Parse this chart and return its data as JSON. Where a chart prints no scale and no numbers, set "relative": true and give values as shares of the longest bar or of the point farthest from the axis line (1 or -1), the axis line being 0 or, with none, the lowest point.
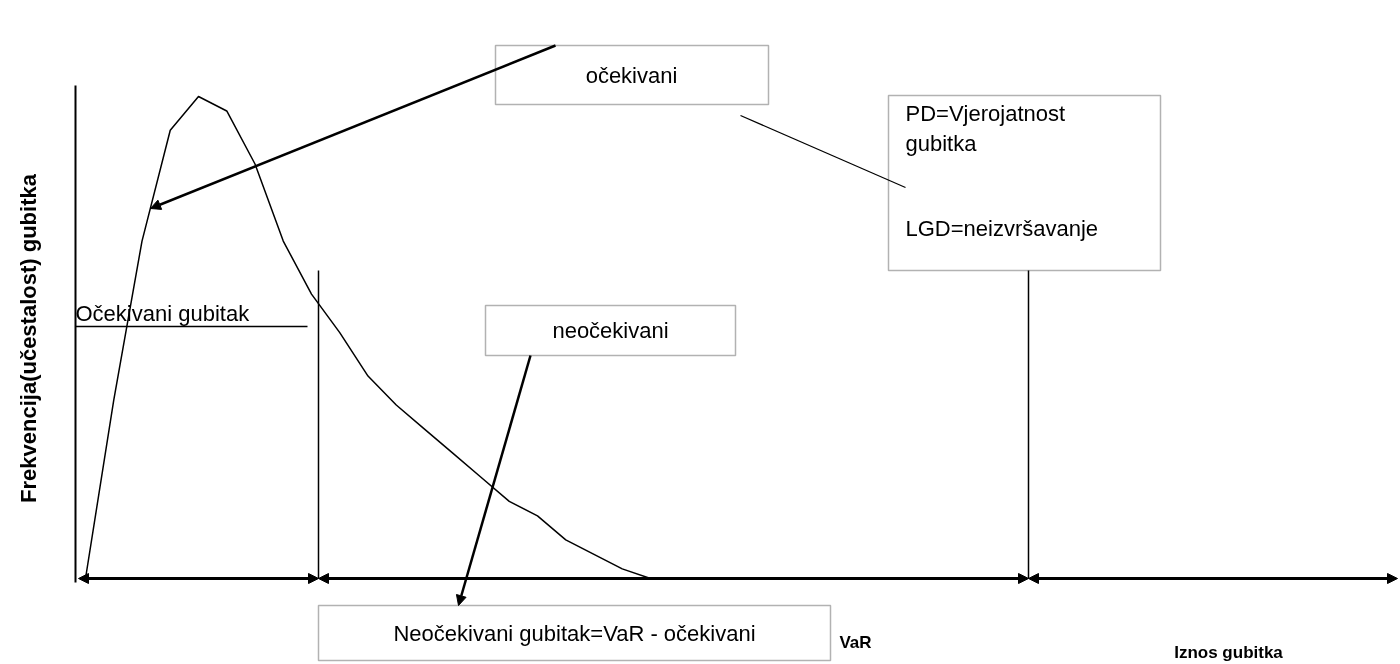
{
  "chart_data": {
    "type": "line",
    "relative": true,
    "ylabel": "Frekvencija(učestalost) gubitka",
    "categories": [
      null,
      null,
      null,
      null,
      null,
      null,
      null,
      null,
      null,
      null,
      null,
      null,
      null,
      null,
      null,
      null,
      null,
      null,
      null,
      null,
      null
    ],
    "series": [
      {
        "color": "#000000",
        "values": [
          0,
          0.37,
          0.7,
          0.93,
          1.0,
          0.97,
          0.86,
          0.7,
          0.59,
          0.51,
          0.42,
          0.36,
          0.31,
          0.26,
          0.21,
          0.16,
          0.13,
          0.08,
          0.05,
          0.02,
          0
        ]
      }
    ],
    "line_style": "solid",
    "marker": "none",
    "annotations": [
      "očekivani",
      "PD=Vjerojatnost\ngubitka",
      "LGD=neizvršavanje",
      "Očekivani gubitak",
      "neočekivani",
      "Neočekivani gubitak=VaR - očekivani",
      "VaR",
      "Iznos gubitka"
    ]
  }
}
